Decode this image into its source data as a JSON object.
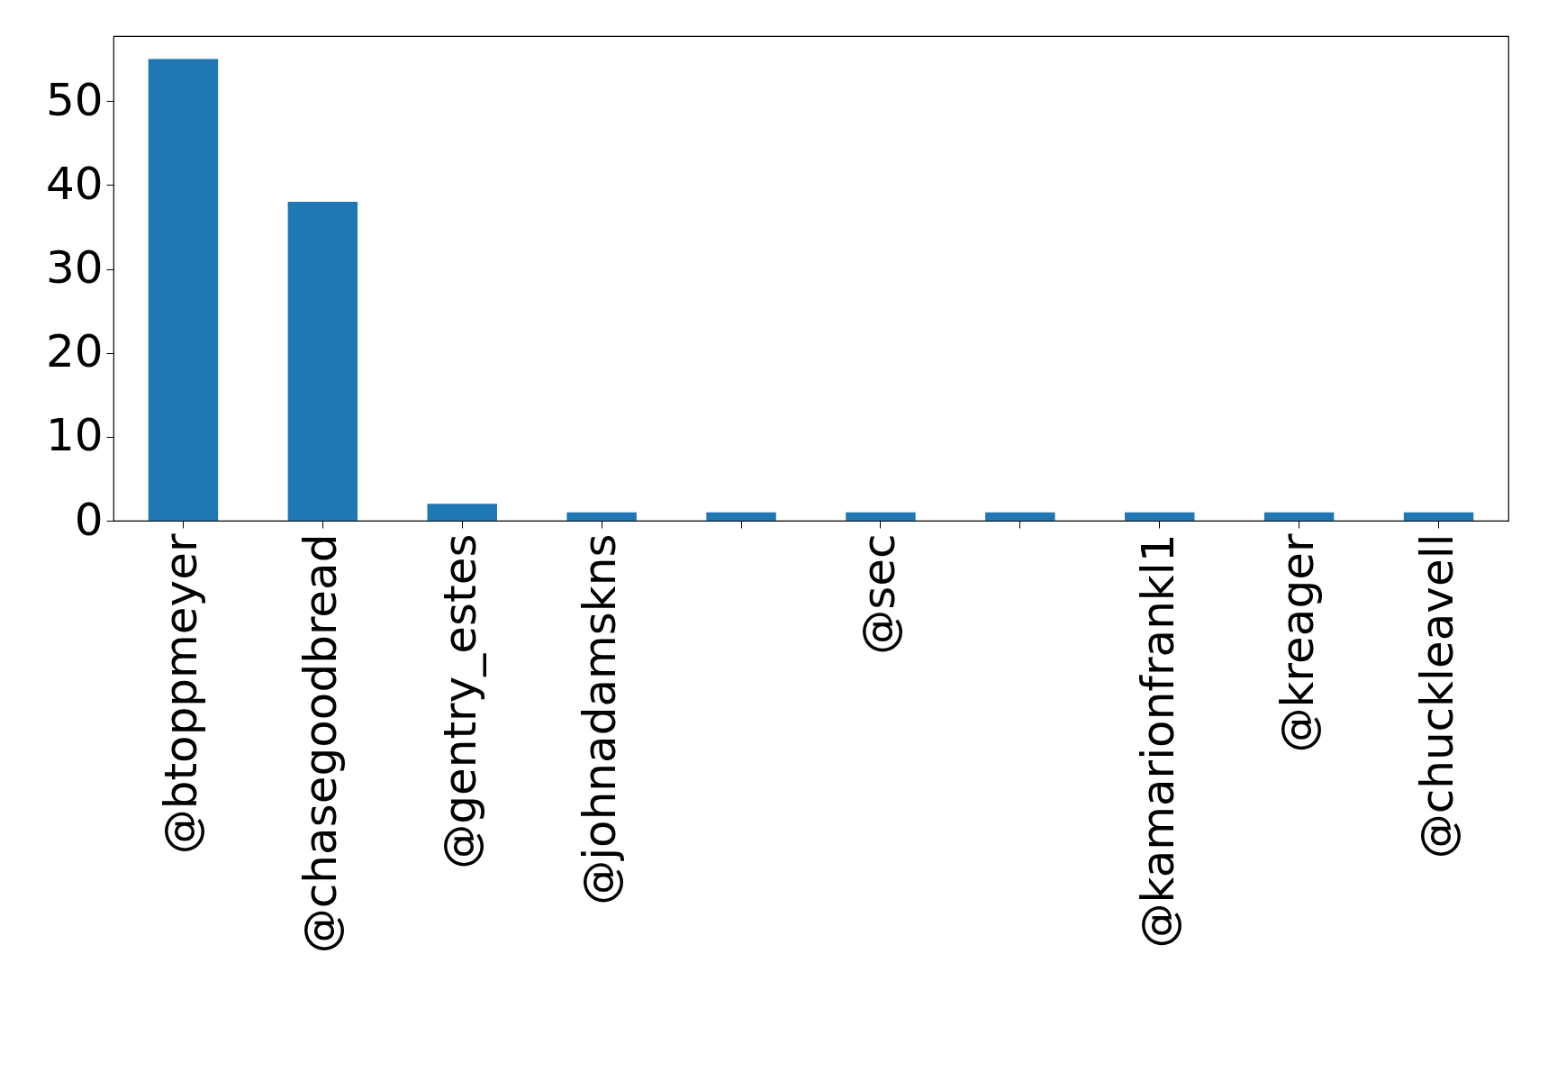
{
  "chart_data": {
    "type": "bar",
    "categories": [
      "@btoppmeyer",
      "@chasegoodbread",
      "@gentry_estes",
      "@johnadamskns",
      null,
      "@sec",
      null,
      "@kamarionfrankl1",
      "@kreager",
      "@chuckleavell"
    ],
    "values": [
      55,
      38,
      2,
      1,
      1,
      1,
      1,
      1,
      1,
      1
    ],
    "color": "#1f77b4",
    "ylim": [
      0,
      57.75
    ],
    "yticks": [
      0,
      10,
      20,
      30,
      40,
      50
    ],
    "grid": false
  }
}
